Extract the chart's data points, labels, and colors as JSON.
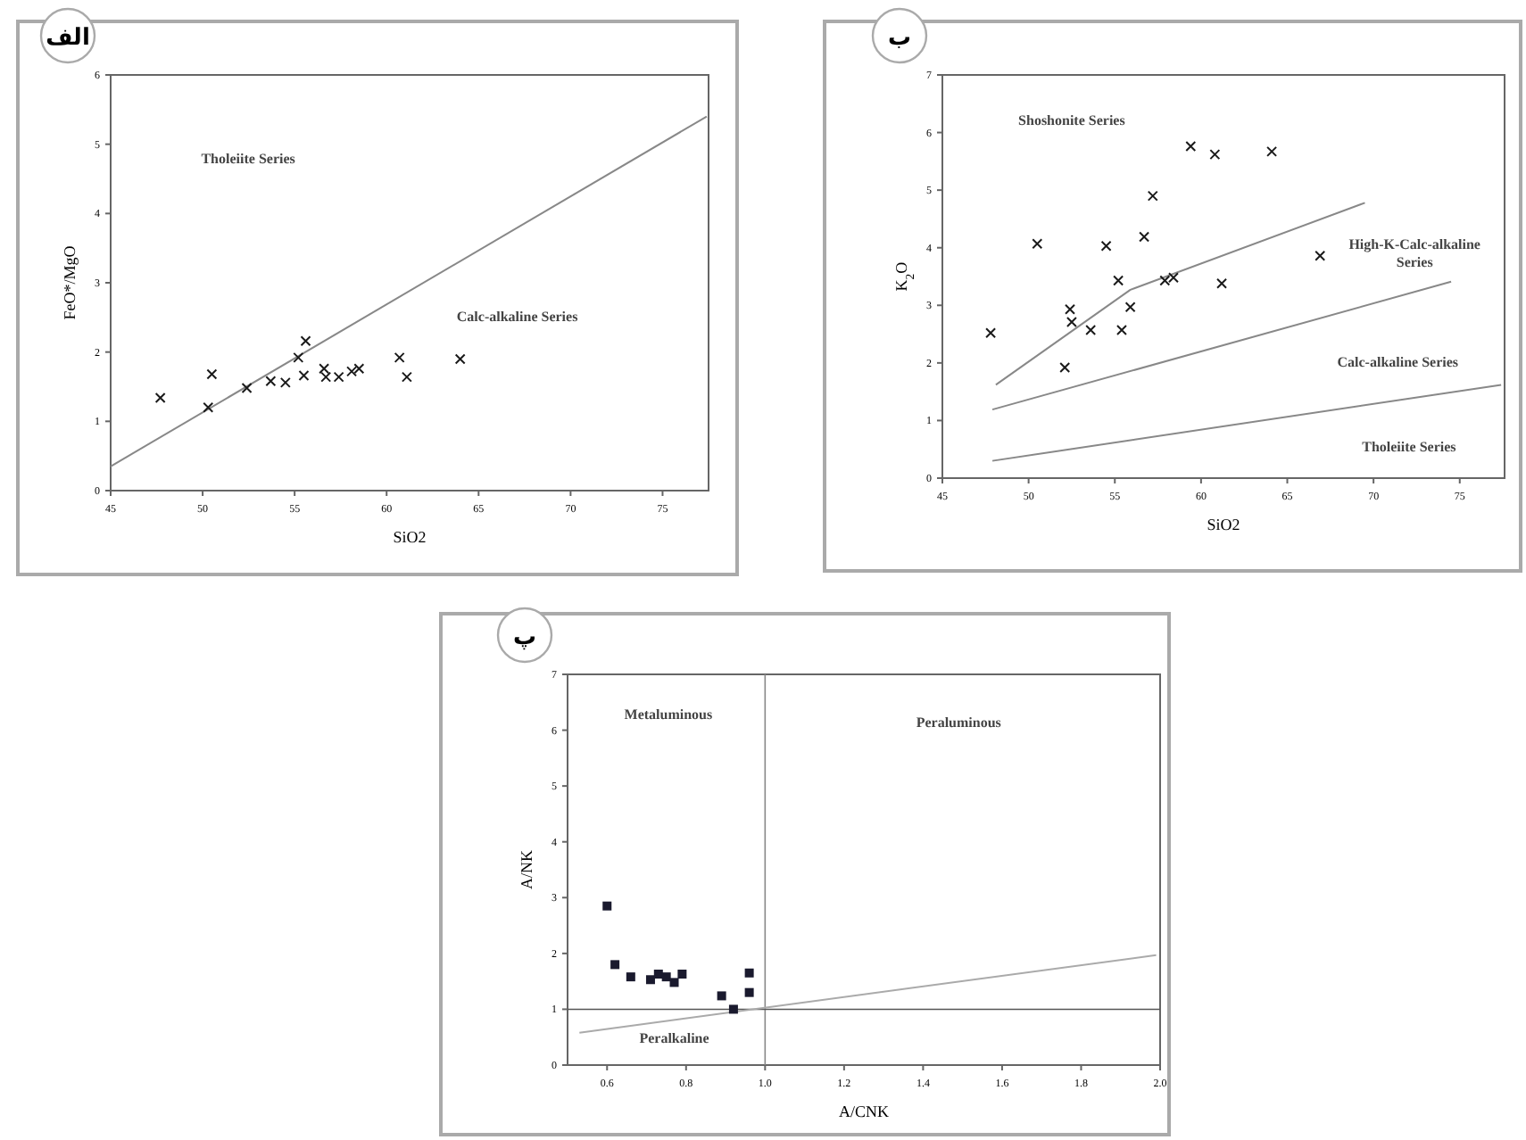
{
  "chart_data": [
    {
      "type": "scatter",
      "title": "الف",
      "xlabel": "SiO2",
      "ylabel": "FeO*/MgO",
      "marker": "cross",
      "xlim": [
        45,
        77.5
      ],
      "ylim": [
        0,
        6
      ],
      "xticks": [
        45,
        50,
        55,
        60,
        65,
        70,
        75
      ],
      "yticks": [
        0,
        1,
        2,
        3,
        4,
        5,
        6
      ],
      "series": [
        {
          "type": "line",
          "marker": "none",
          "color": "#888888",
          "x": [
            45,
            77.4
          ],
          "values": [
            0.35,
            5.4
          ]
        },
        {
          "color": "#1a1a1a",
          "x": [
            47.7,
            50.5,
            50.3,
            52.4,
            53.7,
            54.5,
            55.2,
            55.6,
            55.5,
            56.6,
            56.7,
            57.4,
            58.1,
            58.5,
            60.7,
            61.1,
            64.0
          ],
          "values": [
            1.34,
            1.68,
            1.2,
            1.48,
            1.58,
            1.56,
            1.92,
            2.16,
            1.66,
            1.76,
            1.64,
            1.64,
            1.72,
            1.76,
            1.92,
            1.64,
            1.9
          ]
        }
      ],
      "annotations": [
        "Tholeiite Series",
        "Calc-alkaline Series"
      ]
    },
    {
      "type": "scatter",
      "title": "ب",
      "xlabel": "SiO2",
      "ylabel": "K$_{2}$O",
      "marker": "cross",
      "xlim": [
        45,
        77.6
      ],
      "ylim": [
        0,
        7
      ],
      "xticks": [
        45,
        50,
        55,
        60,
        65,
        70,
        75
      ],
      "yticks": [
        0,
        1,
        2,
        3,
        4,
        5,
        6,
        7
      ],
      "series": [
        {
          "type": "line",
          "marker": "none",
          "color": "#888888",
          "x": [
            48.1,
            55.9,
            69.5
          ],
          "values": [
            1.62,
            3.27,
            4.78
          ]
        },
        {
          "type": "line",
          "marker": "none",
          "color": "#888888",
          "x": [
            47.9,
            74.5
          ],
          "values": [
            1.19,
            3.41
          ]
        },
        {
          "type": "line",
          "marker": "none",
          "color": "#888888",
          "x": [
            47.9,
            77.4
          ],
          "values": [
            0.3,
            1.62
          ]
        },
        {
          "color": "#1a1a1a",
          "x": [
            47.8,
            50.5,
            52.1,
            52.4,
            52.5,
            53.6,
            54.5,
            55.2,
            55.4,
            55.9,
            56.7,
            57.2,
            57.9,
            58.4,
            59.4,
            60.8,
            61.2,
            64.1,
            66.9
          ],
          "values": [
            2.52,
            4.07,
            1.92,
            2.93,
            2.71,
            2.57,
            4.03,
            3.43,
            2.57,
            2.97,
            4.19,
            4.9,
            3.43,
            3.48,
            5.76,
            5.62,
            3.38,
            5.67,
            3.86
          ]
        }
      ],
      "annotations": [
        "Shoshonite Series",
        "High-K-Calc-alkaline Series",
        "Calc-alkaline Series",
        "Tholeiite Series"
      ]
    },
    {
      "type": "scatter",
      "title": "پ",
      "xlabel": "A/CNK",
      "ylabel": "A/NK",
      "marker": "square",
      "xlim": [
        0.5,
        2.0
      ],
      "ylim": [
        0,
        7
      ],
      "xticks": [
        {
          "value": 0.6,
          "label": "0.6"
        },
        {
          "value": 0.8,
          "label": "0.8"
        },
        {
          "value": 1,
          "label": "1.0"
        },
        {
          "value": 1.2,
          "label": "1.2"
        },
        {
          "value": 1.4,
          "label": "1.4"
        },
        {
          "value": 1.6,
          "label": "1.6"
        },
        {
          "value": 1.8,
          "label": "1.8"
        },
        {
          "value": 2,
          "label": "2.0"
        }
      ],
      "yticks": [
        0,
        1,
        2,
        3,
        4,
        5,
        6,
        7
      ],
      "ref_lines": [
        {
          "axis": "x",
          "value": 1,
          "color": "#888888"
        },
        {
          "axis": "y",
          "value": 1,
          "color": "#555555"
        }
      ],
      "series": [
        {
          "type": "line",
          "marker": "none",
          "color": "#aaaaaa",
          "x": [
            0.53,
            1.99
          ],
          "values": [
            0.58,
            1.97
          ]
        },
        {
          "color": "#1a1a2e",
          "x": [
            0.6,
            0.62,
            0.66,
            0.71,
            0.73,
            0.75,
            0.77,
            0.79,
            0.89,
            0.92,
            0.96,
            0.96
          ],
          "values": [
            2.85,
            1.8,
            1.58,
            1.53,
            1.63,
            1.58,
            1.48,
            1.63,
            1.24,
            1.0,
            1.65,
            1.3
          ]
        }
      ],
      "annotations": [
        "Metaluminous",
        "Peraluminous",
        "Peralkaline"
      ]
    }
  ]
}
